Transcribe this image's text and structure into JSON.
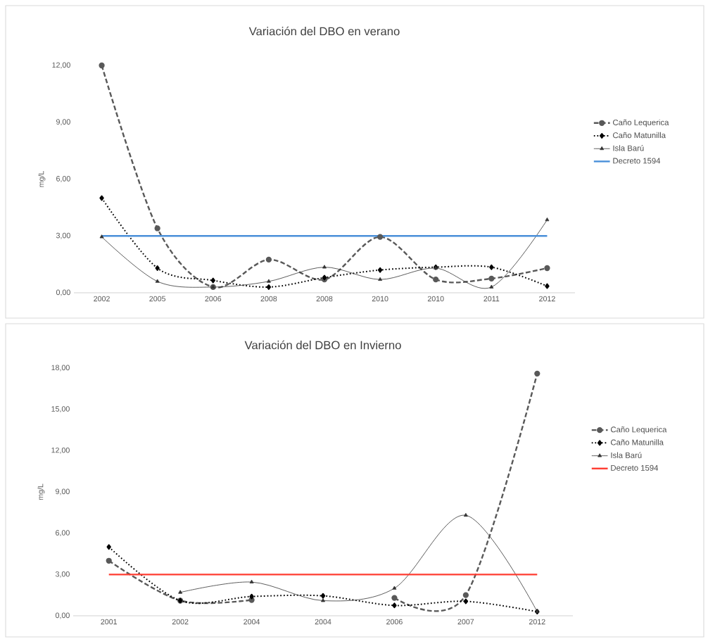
{
  "chart_data": [
    {
      "type": "line",
      "title": "Variación del DBO en verano",
      "ylabel": "mg/L",
      "categories": [
        "2002",
        "2005",
        "2006",
        "2008",
        "2008",
        "2010",
        "2010",
        "2011",
        "2012"
      ],
      "series": [
        {
          "name": "Caño Lequerica",
          "color": "#595959",
          "marker": "circle",
          "line_style": "dashed",
          "values": [
            12.0,
            3.4,
            0.3,
            1.75,
            0.7,
            2.95,
            0.7,
            0.75,
            1.3
          ]
        },
        {
          "name": "Caño Matunilla",
          "color": "#000000",
          "marker": "diamond",
          "line_style": "dotted",
          "values": [
            5.0,
            1.3,
            0.65,
            0.3,
            0.8,
            1.2,
            1.35,
            1.35,
            0.35
          ]
        },
        {
          "name": "Isla Barú",
          "color": "#333333",
          "marker": "triangle",
          "line_style": "solid",
          "values": [
            2.95,
            0.6,
            0.3,
            0.6,
            1.35,
            0.7,
            1.3,
            0.3,
            3.85
          ]
        }
      ],
      "ref_lines": [
        {
          "axis": "y",
          "value": 3.0,
          "label": "Decreto 1594",
          "color": "#4a90d9"
        }
      ],
      "ylim": [
        0,
        12
      ],
      "yticks": [
        {
          "value": 0,
          "label": "0,00"
        },
        {
          "value": 3,
          "label": "3,00"
        },
        {
          "value": 6,
          "label": "6,00"
        },
        {
          "value": 9,
          "label": "9,00"
        },
        {
          "value": 12,
          "label": "12,00"
        }
      ],
      "legend": "right"
    },
    {
      "type": "line",
      "title": "Variación del DBO en Invierno",
      "ylabel": "mg/L",
      "categories": [
        "2001",
        "2002",
        "2004",
        "2004",
        "2006",
        "2007",
        "2012"
      ],
      "series": [
        {
          "name": "Caño Lequerica",
          "color": "#595959",
          "marker": "circle",
          "line_style": "dashed",
          "values": [
            4.0,
            1.1,
            1.15,
            null,
            1.3,
            1.5,
            17.6
          ]
        },
        {
          "name": "Caño Matunilla",
          "color": "#000000",
          "marker": "diamond",
          "line_style": "dotted",
          "values": [
            5.0,
            1.1,
            1.4,
            1.45,
            0.75,
            1.05,
            0.3
          ]
        },
        {
          "name": "Isla Barú",
          "color": "#333333",
          "marker": "triangle",
          "line_style": "solid",
          "values": [
            null,
            1.7,
            2.45,
            1.1,
            2.0,
            7.3,
            0.3
          ]
        }
      ],
      "ref_lines": [
        {
          "axis": "y",
          "value": 3.0,
          "label": "Decreto 1594",
          "color": "#ff3b30"
        }
      ],
      "ylim": [
        0,
        18
      ],
      "yticks": [
        {
          "value": 0,
          "label": "0,00"
        },
        {
          "value": 3,
          "label": "3,00"
        },
        {
          "value": 6,
          "label": "6,00"
        },
        {
          "value": 9,
          "label": "9,00"
        },
        {
          "value": 12,
          "label": "12,00"
        },
        {
          "value": 15,
          "label": "15,00"
        },
        {
          "value": 18,
          "label": "18,00"
        }
      ],
      "legend": "right"
    }
  ]
}
